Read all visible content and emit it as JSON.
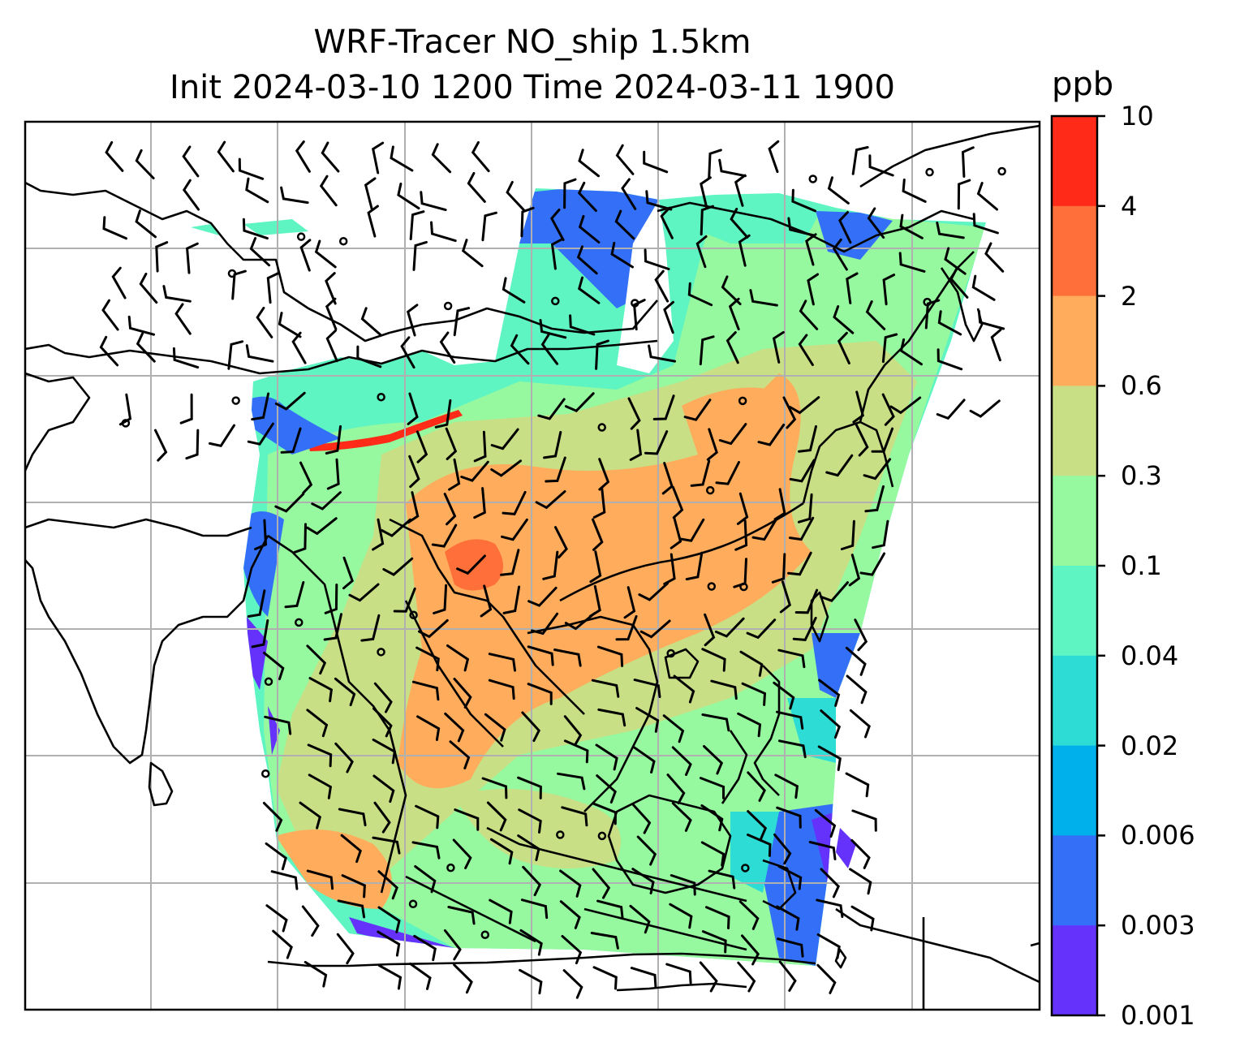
{
  "title": {
    "line1": "WRF-Tracer NO_ship 1.5km",
    "line2": "Init 2024-03-10 1200 Time 2024-03-11 1900"
  },
  "colorbar": {
    "unit": "ppb",
    "levels": [
      "10",
      "4",
      "2",
      "0.6",
      "0.3",
      "0.1",
      "0.04",
      "0.02",
      "0.006",
      "0.003",
      "0.001"
    ],
    "colors": [
      "#ff2a17",
      "#ff6f3a",
      "#ffad5c",
      "#c8df86",
      "#96f99f",
      "#5ff5c2",
      "#2edcd6",
      "#00b0ea",
      "#3370f7",
      "#6432fa"
    ]
  },
  "map": {
    "gridlines": true,
    "coastline_color": "#000000",
    "grid_color": "#b0b0b0",
    "legend_placement": "right"
  }
}
